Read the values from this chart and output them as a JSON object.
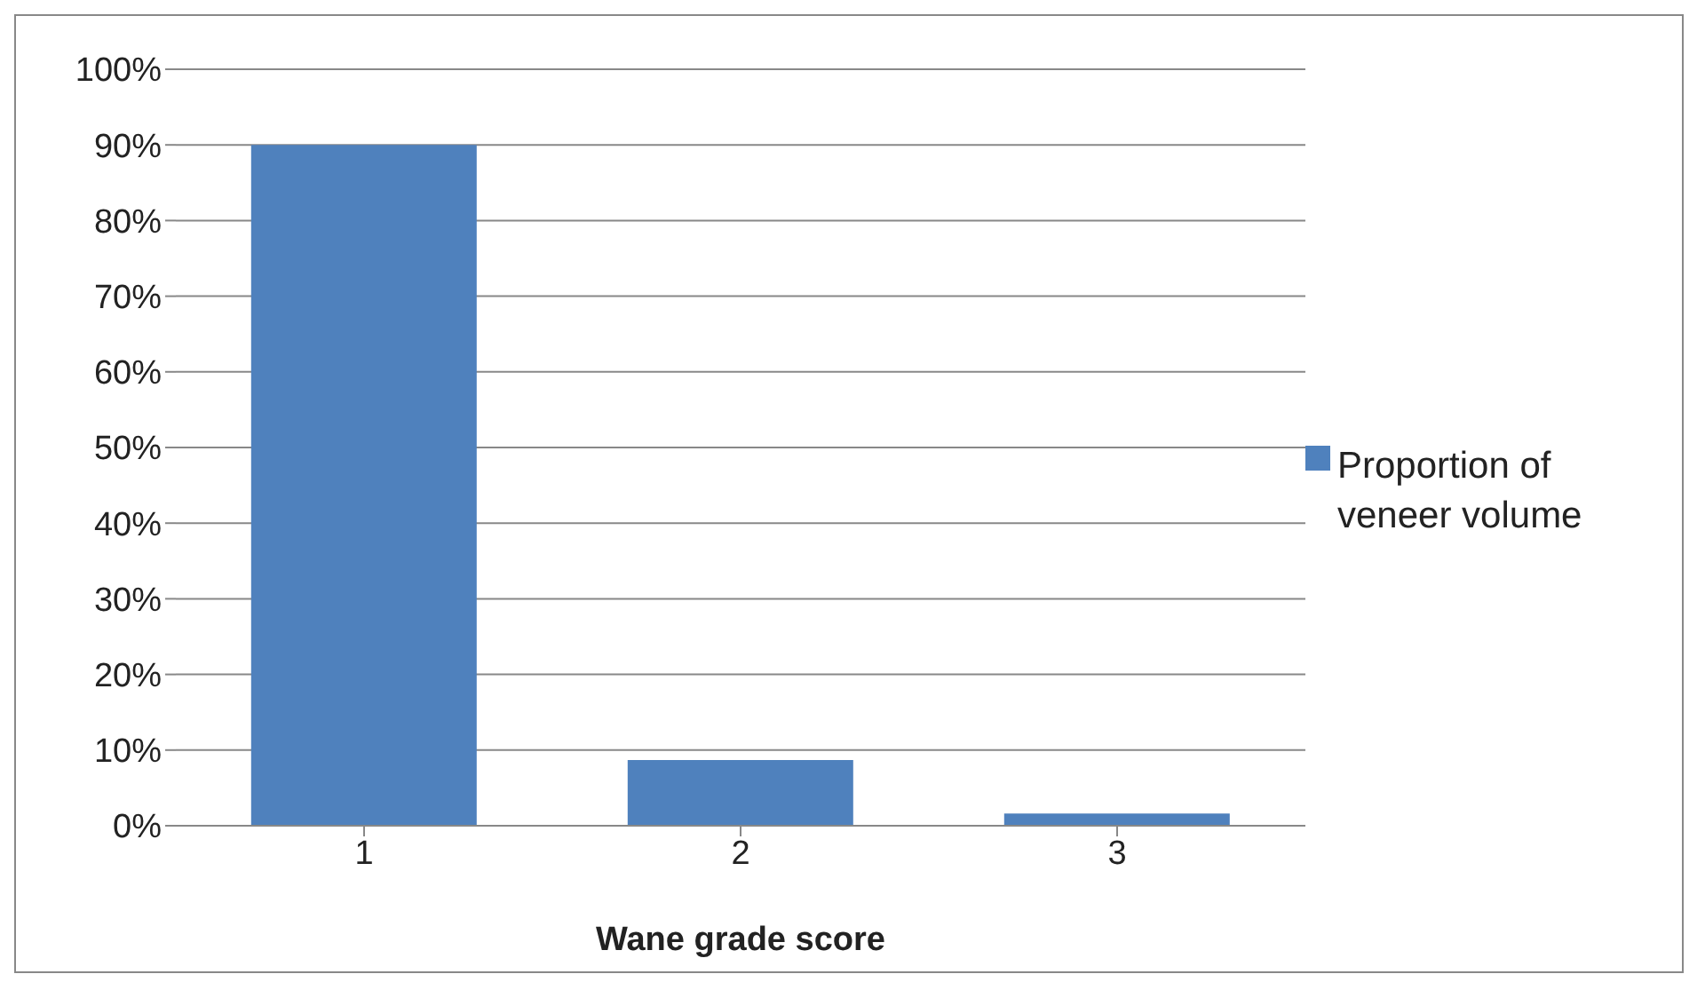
{
  "chart_data": {
    "type": "bar",
    "xlabel": "Wane grade score",
    "categories": [
      "1",
      "2",
      "3"
    ],
    "series": [
      {
        "name": "Proportion of veneer volume",
        "color": "#4f81bd",
        "values": [
          0.9,
          0.087,
          0.016
        ]
      }
    ],
    "ylim": [
      0,
      1
    ],
    "yticks": [
      {
        "value": 0,
        "label": "0%"
      },
      {
        "value": 0.1,
        "label": "10%"
      },
      {
        "value": 0.2,
        "label": "20%"
      },
      {
        "value": 0.3,
        "label": "30%"
      },
      {
        "value": 0.4,
        "label": "40%"
      },
      {
        "value": 0.5,
        "label": "50%"
      },
      {
        "value": 0.6,
        "label": "60%"
      },
      {
        "value": 0.7,
        "label": "70%"
      },
      {
        "value": 0.8,
        "label": "80%"
      },
      {
        "value": 0.9,
        "label": "90%"
      },
      {
        "value": 1,
        "label": "100%"
      }
    ],
    "grid": "y",
    "legend": "right"
  }
}
